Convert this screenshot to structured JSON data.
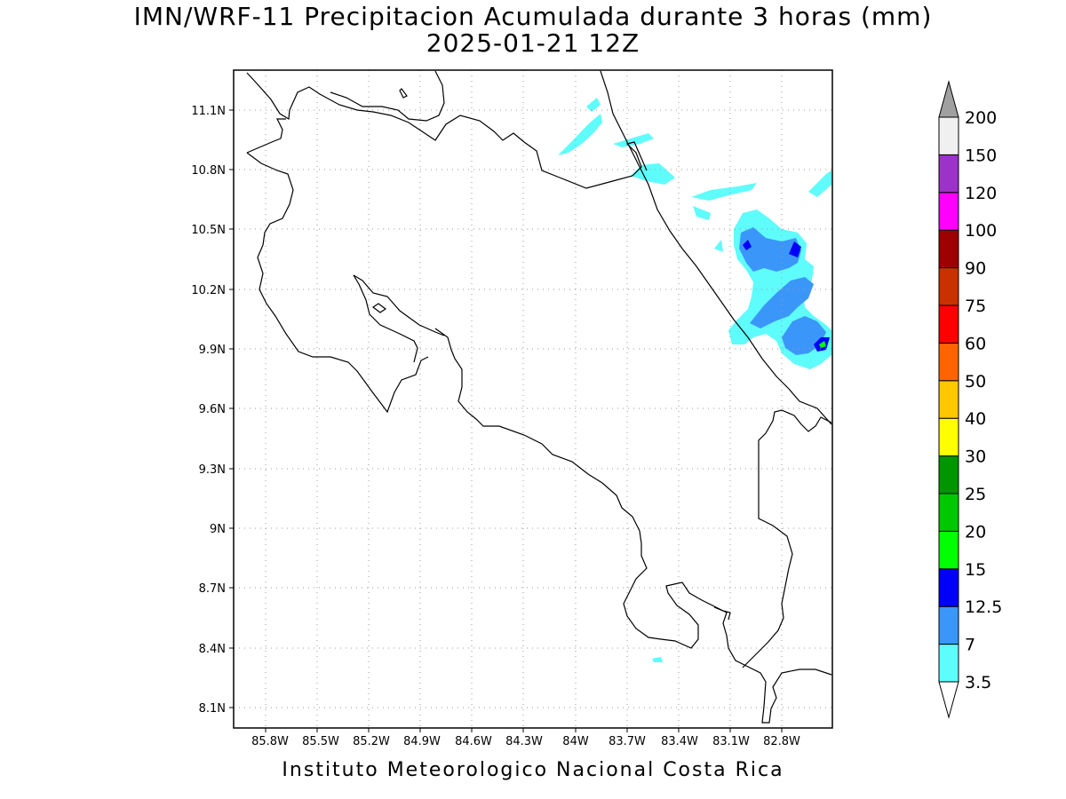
{
  "header": {
    "title_line1": "IMN/WRF-11 Precipitacion Acumulada durante 3 horas (mm)",
    "title_line2": "2025-01-21 12Z"
  },
  "footer": {
    "credit": "Instituto Meteorologico Nacional Costa Rica"
  },
  "map": {
    "lat_labels": [
      "11.1N",
      "10.8N",
      "10.5N",
      "10.2N",
      "9.9N",
      "9.6N",
      "9.3N",
      "9N",
      "8.7N",
      "8.4N",
      "8.1N"
    ],
    "lon_labels": [
      "85.8W",
      "85.5W",
      "85.2W",
      "84.9W",
      "84.6W",
      "84.3W",
      "84W",
      "83.7W",
      "83.4W",
      "83.1W",
      "82.8W"
    ],
    "grid": "dotted"
  },
  "legend": {
    "labels": [
      "3.5",
      "7",
      "12.5",
      "15",
      "20",
      "25",
      "30",
      "40",
      "50",
      "60",
      "75",
      "90",
      "100",
      "120",
      "150",
      "200"
    ],
    "colors": [
      "#ffffff",
      "#5ffcfc",
      "#3b96fa",
      "#0000fa",
      "#00ff00",
      "#00c800",
      "#009600",
      "#ffff00",
      "#ffc800",
      "#ff6400",
      "#ff0000",
      "#c83200",
      "#9c0000",
      "#ff00ff",
      "#9c32c8",
      "#f0f0f0",
      "#a0a0a0"
    ]
  }
}
